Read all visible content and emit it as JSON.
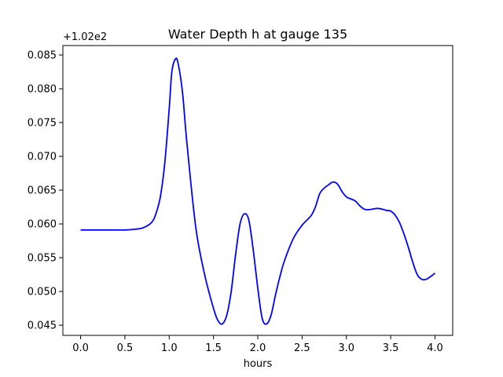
{
  "chart_data": {
    "type": "line",
    "title": "Water Depth h at gauge 135",
    "xlabel": "hours",
    "ylabel": "",
    "y_offset_label": "+1.02e2",
    "xlim": [
      -0.2,
      4.2
    ],
    "ylim": [
      0.0435,
      0.0864
    ],
    "x_ticks": [
      0.0,
      0.5,
      1.0,
      1.5,
      2.0,
      2.5,
      3.0,
      3.5,
      4.0
    ],
    "x_tick_labels": [
      "0.0",
      "0.5",
      "1.0",
      "1.5",
      "2.0",
      "2.5",
      "3.0",
      "3.5",
      "4.0"
    ],
    "y_ticks": [
      0.045,
      0.05,
      0.055,
      0.06,
      0.065,
      0.07,
      0.075,
      0.08,
      0.085
    ],
    "y_tick_labels": [
      "0.045",
      "0.050",
      "0.055",
      "0.060",
      "0.065",
      "0.070",
      "0.075",
      "0.080",
      "0.085"
    ],
    "grid": false,
    "series": [
      {
        "color": "#0000ff",
        "x": [
          0.0,
          0.2,
          0.4,
          0.5,
          0.6,
          0.7,
          0.8,
          0.85,
          0.9,
          0.95,
          1.0,
          1.03,
          1.07,
          1.1,
          1.15,
          1.2,
          1.3,
          1.4,
          1.5,
          1.55,
          1.6,
          1.65,
          1.7,
          1.75,
          1.8,
          1.85,
          1.9,
          1.95,
          2.0,
          2.05,
          2.1,
          2.15,
          2.2,
          2.25,
          2.3,
          2.4,
          2.5,
          2.6,
          2.65,
          2.7,
          2.75,
          2.8,
          2.85,
          2.9,
          2.95,
          3.0,
          3.05,
          3.1,
          3.15,
          3.2,
          3.25,
          3.3,
          3.35,
          3.4,
          3.45,
          3.5,
          3.55,
          3.6,
          3.65,
          3.7,
          3.75,
          3.8,
          3.85,
          3.9,
          3.95,
          4.0
        ],
        "y": [
          0.0591,
          0.0591,
          0.0591,
          0.0591,
          0.0592,
          0.0594,
          0.0602,
          0.0615,
          0.064,
          0.069,
          0.077,
          0.0825,
          0.0844,
          0.0838,
          0.0795,
          0.072,
          0.0595,
          0.0525,
          0.0475,
          0.0457,
          0.0452,
          0.0465,
          0.05,
          0.0555,
          0.06,
          0.0615,
          0.0605,
          0.056,
          0.0505,
          0.046,
          0.0452,
          0.0465,
          0.0495,
          0.0522,
          0.0545,
          0.0578,
          0.0598,
          0.0612,
          0.0625,
          0.0645,
          0.0653,
          0.0658,
          0.0662,
          0.0659,
          0.0648,
          0.064,
          0.0637,
          0.0634,
          0.0627,
          0.0622,
          0.0621,
          0.0622,
          0.0623,
          0.0622,
          0.062,
          0.0619,
          0.0613,
          0.0602,
          0.0585,
          0.0565,
          0.0543,
          0.0525,
          0.0518,
          0.0518,
          0.0522,
          0.0527
        ]
      }
    ]
  }
}
